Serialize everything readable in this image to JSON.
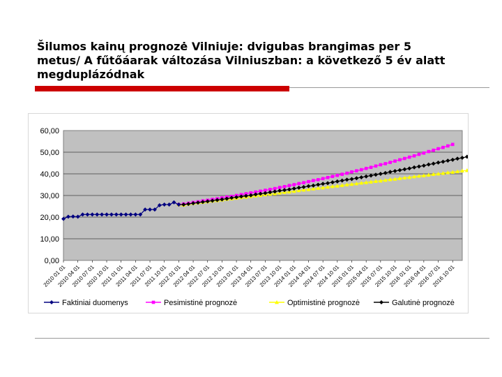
{
  "slide": {
    "title": "Šilumos kainų prognozė Vilniuje:  dvigubas brangimas per 5\nmetus/ A fűtőáarak  változása Vilniuszban: a következő 5 év alatt\nmegduplázódnak"
  },
  "colors": {
    "accent_bar": "#cc0000",
    "plot_bg": "#c0c0c0",
    "rule": "#999999"
  },
  "chart_data": {
    "type": "line",
    "title": "",
    "xlabel": "",
    "ylabel": "",
    "ylim": [
      0,
      60
    ],
    "yticks": [
      "0,00",
      "10,00",
      "20,00",
      "30,00",
      "40,00",
      "50,00",
      "60,00"
    ],
    "grid": true,
    "legend_position": "bottom",
    "x_tick_labels": [
      "2010 01 01",
      "2010 04 01",
      "2010 07 01",
      "2010 10 01",
      "2011 01 01",
      "2011 04 01",
      "2011 07 01",
      "2011 10 01",
      "2012 01 01",
      "2012 04 01",
      "2012 07 01",
      "2012 10 01",
      "2013 01 01",
      "2013 04 01",
      "2013 07 01",
      "2013 10 01",
      "2014 01 01",
      "2014 04 01",
      "2014 07 01",
      "2014 10 01",
      "2015 01 01",
      "2015 04 01",
      "2015 07 01",
      "2015 10 01",
      "2016 01 01",
      "2016 04 01",
      "2016 07 01",
      "2016 10 01"
    ],
    "x_start": "2010-01-01",
    "series": [
      {
        "name": "Faktiniai duomenys",
        "color": "#000080",
        "marker": "diamond",
        "start_index": 0,
        "values": [
          19.2,
          20.2,
          20.3,
          20.2,
          21.2,
          21.2,
          21.2,
          21.2,
          21.2,
          21.2,
          21.2,
          21.2,
          21.2,
          21.2,
          21.2,
          21.2,
          21.2,
          23.5,
          23.5,
          23.5,
          25.5,
          25.8,
          25.8,
          26.8,
          25.8
        ]
      },
      {
        "name": "Pesimistinė prognozė",
        "color": "#ff00ff",
        "marker": "square",
        "start_index": 24,
        "values": [
          25.8,
          26.1,
          26.4,
          26.8,
          27.1,
          27.5,
          27.8,
          28.2,
          28.5,
          28.9,
          29.3,
          29.6,
          30.0,
          30.4,
          30.8,
          31.2,
          31.6,
          32.0,
          32.4,
          32.8,
          33.2,
          33.7,
          34.1,
          34.6,
          35.0,
          35.5,
          35.9,
          36.4,
          36.9,
          37.3,
          37.8,
          38.3,
          38.8,
          39.3,
          39.8,
          40.3,
          40.9,
          41.4,
          41.9,
          42.5,
          43.0,
          43.6,
          44.2,
          44.7,
          45.3,
          45.9,
          46.5,
          47.1,
          47.7,
          48.3,
          49.0,
          49.6,
          50.3,
          50.9,
          51.6,
          52.2,
          52.9,
          53.6
        ]
      },
      {
        "name": "Optimistinė prognozė",
        "color": "#ffff00",
        "marker": "triangle",
        "start_index": 24,
        "values": [
          25.8,
          25.6,
          26.1,
          26.4,
          26.7,
          26.9,
          27.2,
          27.5,
          27.7,
          28.0,
          28.3,
          28.5,
          28.8,
          29.1,
          29.3,
          29.6,
          29.9,
          30.1,
          30.4,
          30.7,
          30.9,
          31.2,
          31.5,
          31.7,
          32.0,
          32.3,
          32.6,
          32.8,
          33.1,
          33.4,
          33.6,
          33.9,
          34.2,
          34.4,
          34.7,
          35.0,
          35.2,
          35.5,
          35.8,
          36.0,
          36.3,
          36.6,
          36.8,
          37.1,
          37.4,
          37.6,
          37.9,
          38.2,
          38.4,
          38.7,
          39.0,
          39.2,
          39.5,
          39.8,
          40.0,
          40.3,
          40.6,
          40.8,
          41.1,
          41.4,
          41.6,
          41.9,
          42.2
        ]
      },
      {
        "name": "Galutinė prognozė",
        "color": "#000000",
        "marker": "diamond",
        "start_index": 24,
        "values": [
          25.8,
          25.8,
          26.1,
          26.4,
          26.7,
          27.0,
          27.3,
          27.6,
          27.9,
          28.2,
          28.5,
          28.9,
          29.2,
          29.5,
          29.8,
          30.1,
          30.5,
          30.8,
          31.1,
          31.5,
          31.8,
          32.2,
          32.5,
          32.8,
          33.2,
          33.6,
          33.9,
          34.3,
          34.6,
          35.0,
          35.4,
          35.7,
          36.1,
          36.5,
          36.9,
          37.3,
          37.6,
          38.0,
          38.4,
          38.8,
          39.2,
          39.6,
          40.0,
          40.4,
          40.9,
          41.3,
          41.7,
          42.1,
          42.5,
          43.0,
          43.4,
          43.8,
          44.3,
          44.7,
          45.2,
          45.6,
          46.1,
          46.5,
          47.0,
          47.4,
          47.9
        ]
      }
    ]
  }
}
